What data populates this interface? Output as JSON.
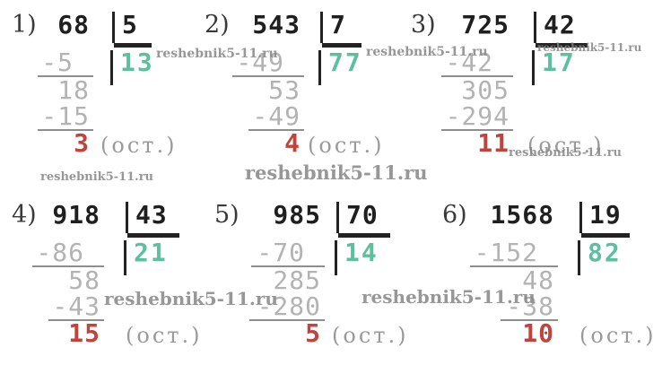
{
  "colors": {
    "ink": "#1f1f1f",
    "work": "#b3b3b3",
    "quotient": "#5cc09c",
    "remainder": "#c2423c",
    "line-strong": "#232323",
    "line-light": "#8e8e8e",
    "label": "#3a3a3a",
    "muted": "#9a9a9a",
    "watermark": "#868686"
  },
  "labels": {
    "remainder_unit": "(ост.)"
  },
  "watermark": {
    "text": "reshebnik5-11.ru"
  },
  "problems": [
    {
      "index": "1)",
      "dividend": "68",
      "divisor": "5",
      "quotient": "13",
      "steps": [
        "-5",
        "18",
        "-15"
      ],
      "remainder": "3"
    },
    {
      "index": "2)",
      "dividend": "543",
      "divisor": "7",
      "quotient": "77",
      "steps": [
        "-49",
        "53",
        "-49"
      ],
      "remainder": "4"
    },
    {
      "index": "3)",
      "dividend": "725",
      "divisor": "42",
      "quotient": "17",
      "steps": [
        "-42",
        "305",
        "-294"
      ],
      "remainder": "11"
    },
    {
      "index": "4)",
      "dividend": "918",
      "divisor": "43",
      "quotient": "21",
      "steps": [
        "-86",
        "58",
        "-43"
      ],
      "remainder": "15"
    },
    {
      "index": "5)",
      "dividend": "985",
      "divisor": "70",
      "quotient": "14",
      "steps": [
        "-70",
        "285",
        "-280"
      ],
      "remainder": "5"
    },
    {
      "index": "6)",
      "dividend": "1568",
      "divisor": "19",
      "quotient": "82",
      "steps": [
        "-152",
        "48",
        "-38"
      ],
      "remainder": "10"
    }
  ]
}
